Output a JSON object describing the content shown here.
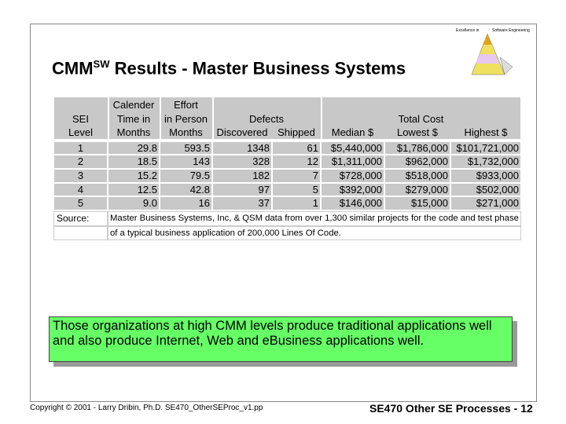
{
  "logo": {
    "left": "Excellence in",
    "right": "Software Engineering"
  },
  "header": {
    "title_main": "CMM",
    "title_sup": "SW",
    "title_rest": " Results - Master Business Systems"
  },
  "table": {
    "columns": [
      {
        "lines": [
          "SEI",
          "Level"
        ]
      },
      {
        "lines": [
          "Calender",
          "Time in",
          "Months"
        ]
      },
      {
        "lines": [
          "Effort",
          "in Person",
          "Months"
        ]
      },
      {
        "lines": [
          "Discovered"
        ]
      },
      {
        "lines": [
          "Shipped"
        ]
      },
      {
        "lines": [
          "Median $"
        ]
      },
      {
        "lines": [
          "Lowest $"
        ]
      },
      {
        "lines": [
          "Highest $"
        ]
      }
    ],
    "groups": [
      {
        "label": "Defects"
      },
      {
        "label": "Total Cost"
      }
    ],
    "rows": [
      [
        "1",
        "29.8",
        "593.5",
        "1348",
        "61",
        "$5,440,000",
        "$1,786,000",
        "$101,721,000"
      ],
      [
        "2",
        "18.5",
        "143",
        "328",
        "12",
        "$1,311,000",
        "$962,000",
        "$1,732,000"
      ],
      [
        "3",
        "15.2",
        "79.5",
        "182",
        "7",
        "$728,000",
        "$518,000",
        "$933,000"
      ],
      [
        "4",
        "12.5",
        "42.8",
        "97",
        "5",
        "$392,000",
        "$279,000",
        "$502,000"
      ],
      [
        "5",
        "9.0",
        "16",
        "37",
        "1",
        "$146,000",
        "$15,000",
        "$271,000"
      ]
    ],
    "source_label": "Source:",
    "source_lines": [
      "Master Business Systems, Inc, & QSM data from over 1,300 similar projects for the code and test phase",
      "of a typical business application of 200,000 Lines Of Code."
    ]
  },
  "callout": {
    "text": "Those organizations at high CMM levels produce traditional applications well and also produce Internet, Web and eBusiness applications well."
  },
  "footer": {
    "copyright": "Copyright © 2001 - Larry Dribin, Ph.D. SE470_OtherSEProc_v1.pp",
    "page": "SE470 Other SE Processes - 12"
  }
}
